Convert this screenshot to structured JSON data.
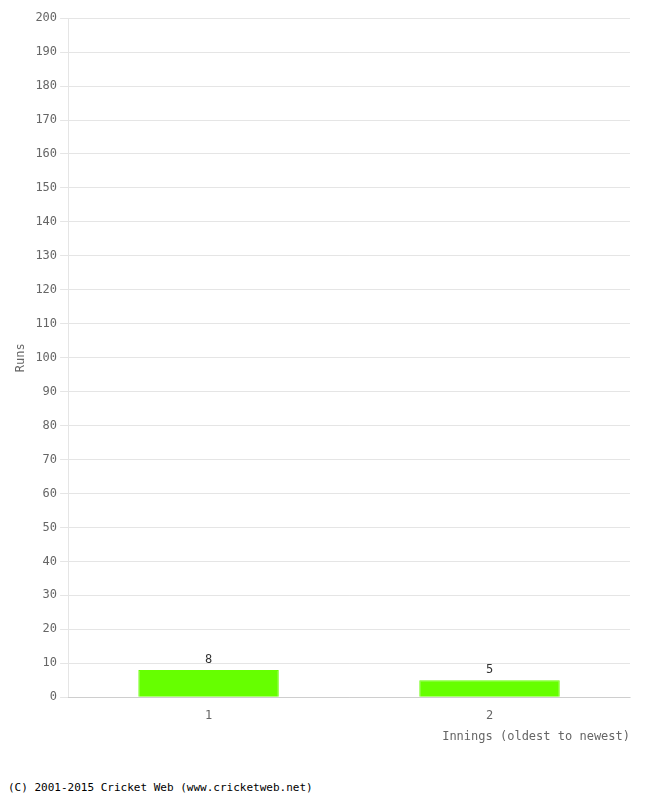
{
  "chart_data": {
    "type": "bar",
    "xlabel": "Innings (oldest to newest)",
    "ylabel": "Runs",
    "categories": [
      1,
      2
    ],
    "values": [
      8,
      5
    ],
    "color": "#66ff00",
    "ylim": [
      0,
      200
    ],
    "yticks": [
      0,
      10,
      20,
      30,
      40,
      50,
      60,
      70,
      80,
      90,
      100,
      110,
      120,
      130,
      140,
      150,
      160,
      170,
      180,
      190,
      200
    ],
    "xticks": [
      1,
      2
    ],
    "grid": "y",
    "data_labels": true,
    "annotations": [
      "(C) 2001-2015 Cricket Web (www.cricketweb.net)"
    ]
  }
}
